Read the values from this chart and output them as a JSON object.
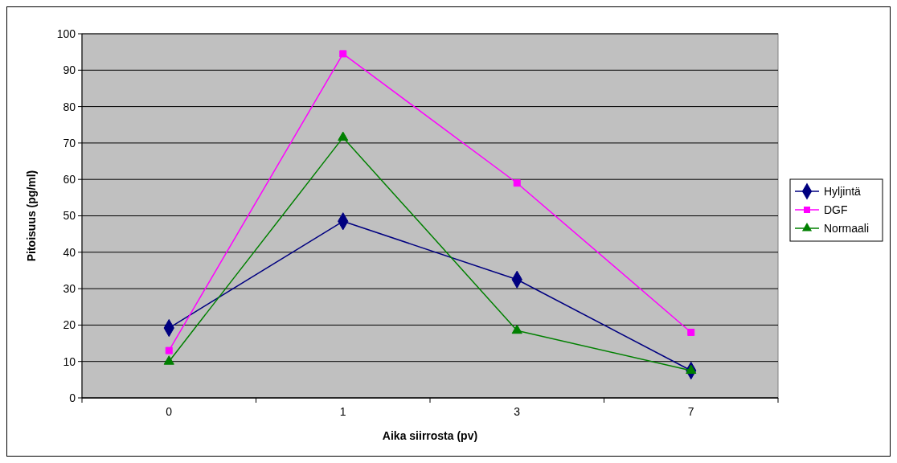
{
  "chart_data": {
    "type": "line",
    "xlabel": "Aika siirrosta (pv)",
    "ylabel": "Pitoisuus (pg/ml)",
    "categories": [
      "0",
      "1",
      "3",
      "7"
    ],
    "ylim": [
      0,
      100
    ],
    "yticks": [
      0,
      10,
      20,
      30,
      40,
      50,
      60,
      70,
      80,
      90,
      100
    ],
    "grid": "y",
    "legend": "right",
    "line_style": "solid",
    "series": [
      {
        "name": "Hyljintä",
        "color": "#000080",
        "marker": "diamond",
        "values": [
          19.2,
          48.5,
          32.5,
          7.5
        ]
      },
      {
        "name": "DGF",
        "color": "#ff00ff",
        "marker": "square",
        "values": [
          13,
          94.5,
          59,
          18
        ]
      },
      {
        "name": "Normaali",
        "color": "#008000",
        "marker": "triangle",
        "values": [
          10,
          71.5,
          18.5,
          7.5
        ]
      }
    ]
  }
}
